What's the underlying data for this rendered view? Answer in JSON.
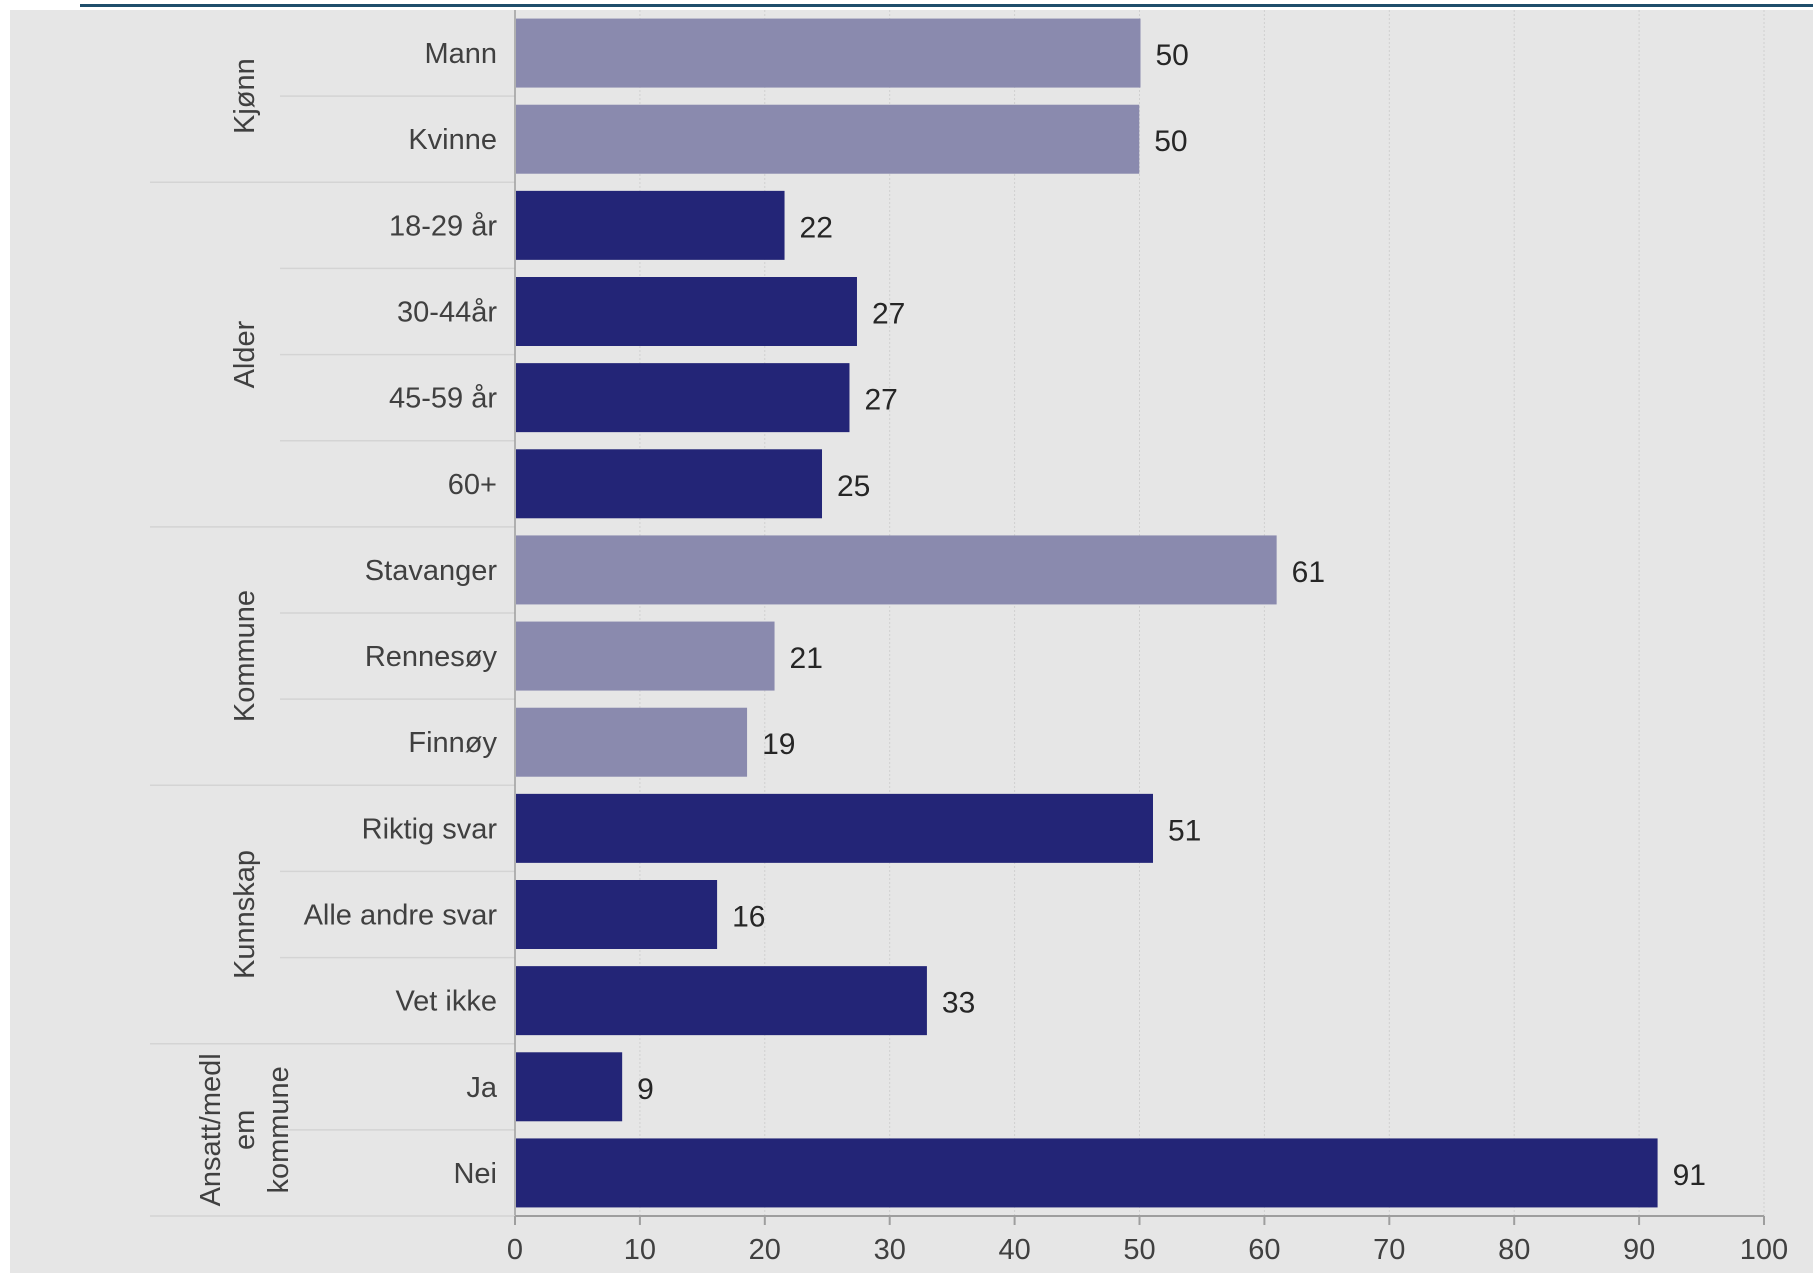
{
  "chart_data": {
    "type": "bar",
    "orientation": "horizontal",
    "groups": [
      {
        "label": "Kjønn",
        "items": [
          {
            "label": "Mann",
            "value": 50,
            "color": "#8A8AAE"
          },
          {
            "label": "Kvinne",
            "value": 49.9,
            "value_label": "50",
            "color": "#8A8AAE"
          }
        ]
      },
      {
        "label": "Alder",
        "items": [
          {
            "label": "18-29 år",
            "value": 21.5,
            "value_label": "22",
            "color": "#232577"
          },
          {
            "label": "30-44år",
            "value": 27.3,
            "value_label": "27",
            "color": "#232577"
          },
          {
            "label": "45-59 år",
            "value": 26.7,
            "value_label": "27",
            "color": "#232577"
          },
          {
            "label": "60+",
            "value": 24.5,
            "value_label": "25",
            "color": "#232577"
          }
        ]
      },
      {
        "label": "Kommune",
        "items": [
          {
            "label": "Stavanger",
            "value": 60.9,
            "value_label": "61",
            "color": "#8A8AAE"
          },
          {
            "label": "Rennesøy",
            "value": 20.7,
            "value_label": "21",
            "color": "#8A8AAE"
          },
          {
            "label": "Finnøy",
            "value": 18.5,
            "value_label": "19",
            "color": "#8A8AAE"
          }
        ]
      },
      {
        "label": "Kunnskap",
        "items": [
          {
            "label": "Riktig svar",
            "value": 51,
            "value_label": "51",
            "color": "#232577"
          },
          {
            "label": "Alle andre svar",
            "value": 16.1,
            "value_label": "16",
            "color": "#232577"
          },
          {
            "label": "Vet ikke",
            "value": 32.9,
            "value_label": "33",
            "color": "#232577"
          }
        ]
      },
      {
        "label": "Ansatt/medlem kommune",
        "label_lines": [
          "Ansatt/medl",
          "em",
          "kommune"
        ],
        "items": [
          {
            "label": "Ja",
            "value": 8.5,
            "value_label": "9",
            "color": "#232577"
          },
          {
            "label": "Nei",
            "value": 91.4,
            "value_label": "91",
            "color": "#232577"
          }
        ]
      }
    ],
    "xlim": [
      0,
      100
    ],
    "xticks": [
      0,
      10,
      20,
      30,
      40,
      50,
      60,
      70,
      80,
      90,
      100
    ],
    "grid": true,
    "background": "#E6E6E6",
    "accent_line_color": "#1F4E6B",
    "text_color": "#404040",
    "value_label_color": "#262626"
  }
}
